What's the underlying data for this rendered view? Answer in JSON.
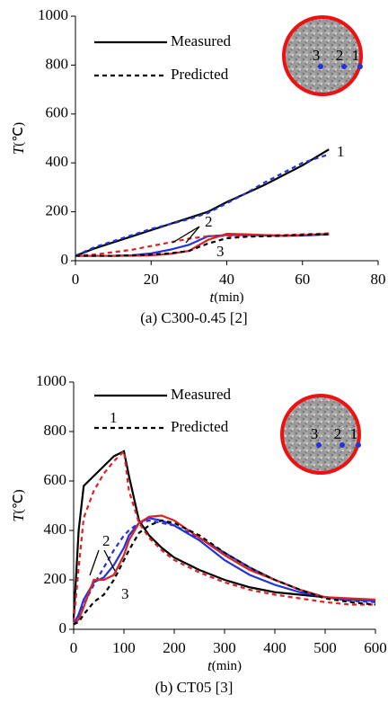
{
  "chart_data": [
    {
      "type": "line",
      "caption": "(a) C300-0.45 [2]",
      "xlabel": {
        "symbol": "t",
        "unit": "(min)"
      },
      "ylabel": {
        "symbol": "T",
        "unit": "(℃)"
      },
      "xlim": [
        0,
        80
      ],
      "xticks": [
        0,
        20,
        40,
        60,
        80
      ],
      "ylim": [
        0,
        1000
      ],
      "yticks": [
        0,
        200,
        400,
        600,
        800,
        1000
      ],
      "legend": [
        {
          "name": "Measured",
          "dashed": false
        },
        {
          "name": "Predicted",
          "dashed": true
        }
      ],
      "x": [
        0,
        5,
        10,
        15,
        20,
        25,
        30,
        35,
        40,
        45,
        50,
        55,
        60,
        67
      ],
      "series": [
        {
          "point": "1",
          "dashed": false,
          "color": "#000000",
          "values": [
            20,
            50,
            75,
            100,
            125,
            150,
            175,
            200,
            240,
            275,
            310,
            350,
            390,
            455
          ]
        },
        {
          "point": "1",
          "dashed": true,
          "color": "#2233dd",
          "values": [
            20,
            55,
            80,
            105,
            130,
            150,
            170,
            195,
            235,
            275,
            320,
            360,
            400,
            435
          ]
        },
        {
          "point": "2",
          "dashed": false,
          "color": "#2233dd",
          "values": [
            20,
            20,
            20,
            22,
            30,
            45,
            65,
            100,
            105,
            105,
            103,
            102,
            103,
            108
          ]
        },
        {
          "point": "2",
          "dashed": true,
          "color": "#dd2222",
          "values": [
            20,
            25,
            35,
            45,
            60,
            75,
            90,
            100,
            102,
            102,
            103,
            105,
            108,
            112
          ]
        },
        {
          "point": "3",
          "dashed": false,
          "color": "#dd2222",
          "values": [
            20,
            20,
            20,
            20,
            22,
            28,
            40,
            85,
            110,
            108,
            105,
            103,
            105,
            110
          ]
        },
        {
          "point": "3",
          "dashed": true,
          "color": "#000000",
          "values": [
            20,
            20,
            20,
            22,
            25,
            30,
            40,
            70,
            92,
            98,
            100,
            102,
            105,
            108
          ]
        }
      ]
    },
    {
      "type": "line",
      "caption": "(b) CT05 [3]",
      "xlabel": {
        "symbol": "t",
        "unit": "(min)"
      },
      "ylabel": {
        "symbol": "T",
        "unit": "(℃)"
      },
      "xlim": [
        0,
        600
      ],
      "xticks": [
        0,
        100,
        200,
        300,
        400,
        500,
        600
      ],
      "ylim": [
        0,
        1000
      ],
      "yticks": [
        0,
        200,
        400,
        600,
        800,
        1000
      ],
      "legend": [
        {
          "name": "Measured",
          "dashed": false
        },
        {
          "name": "Predicted",
          "dashed": true
        }
      ],
      "x": [
        0,
        10,
        20,
        40,
        60,
        80,
        100,
        110,
        130,
        150,
        175,
        200,
        250,
        300,
        350,
        400,
        450,
        500,
        550,
        600
      ],
      "series": [
        {
          "point": "1",
          "dashed": false,
          "color": "#000000",
          "values": [
            40,
            400,
            580,
            620,
            660,
            700,
            720,
            620,
            440,
            380,
            330,
            290,
            240,
            200,
            170,
            150,
            140,
            130,
            120,
            115
          ]
        },
        {
          "point": "1",
          "dashed": true,
          "color": "#dd2222",
          "values": [
            30,
            250,
            450,
            560,
            630,
            680,
            720,
            560,
            430,
            370,
            320,
            280,
            230,
            190,
            160,
            140,
            125,
            110,
            100,
            100
          ]
        },
        {
          "point": "2",
          "dashed": false,
          "color": "#2233dd",
          "values": [
            20,
            60,
            120,
            190,
            210,
            260,
            330,
            380,
            430,
            450,
            440,
            420,
            360,
            280,
            220,
            180,
            150,
            130,
            120,
            115
          ]
        },
        {
          "point": "2",
          "dashed": true,
          "color": "#2233dd",
          "values": [
            20,
            50,
            100,
            180,
            250,
            320,
            380,
            400,
            430,
            440,
            430,
            420,
            370,
            310,
            250,
            200,
            160,
            130,
            115,
            110
          ]
        },
        {
          "point": "3",
          "dashed": false,
          "color": "#dd2222",
          "values": [
            20,
            40,
            90,
            200,
            200,
            220,
            300,
            360,
            430,
            455,
            460,
            440,
            370,
            300,
            240,
            200,
            160,
            130,
            125,
            120
          ]
        },
        {
          "point": "3",
          "dashed": true,
          "color": "#000000",
          "values": [
            20,
            30,
            60,
            110,
            140,
            200,
            280,
            320,
            390,
            420,
            440,
            430,
            380,
            310,
            250,
            200,
            160,
            125,
            110,
            100
          ]
        }
      ]
    }
  ]
}
